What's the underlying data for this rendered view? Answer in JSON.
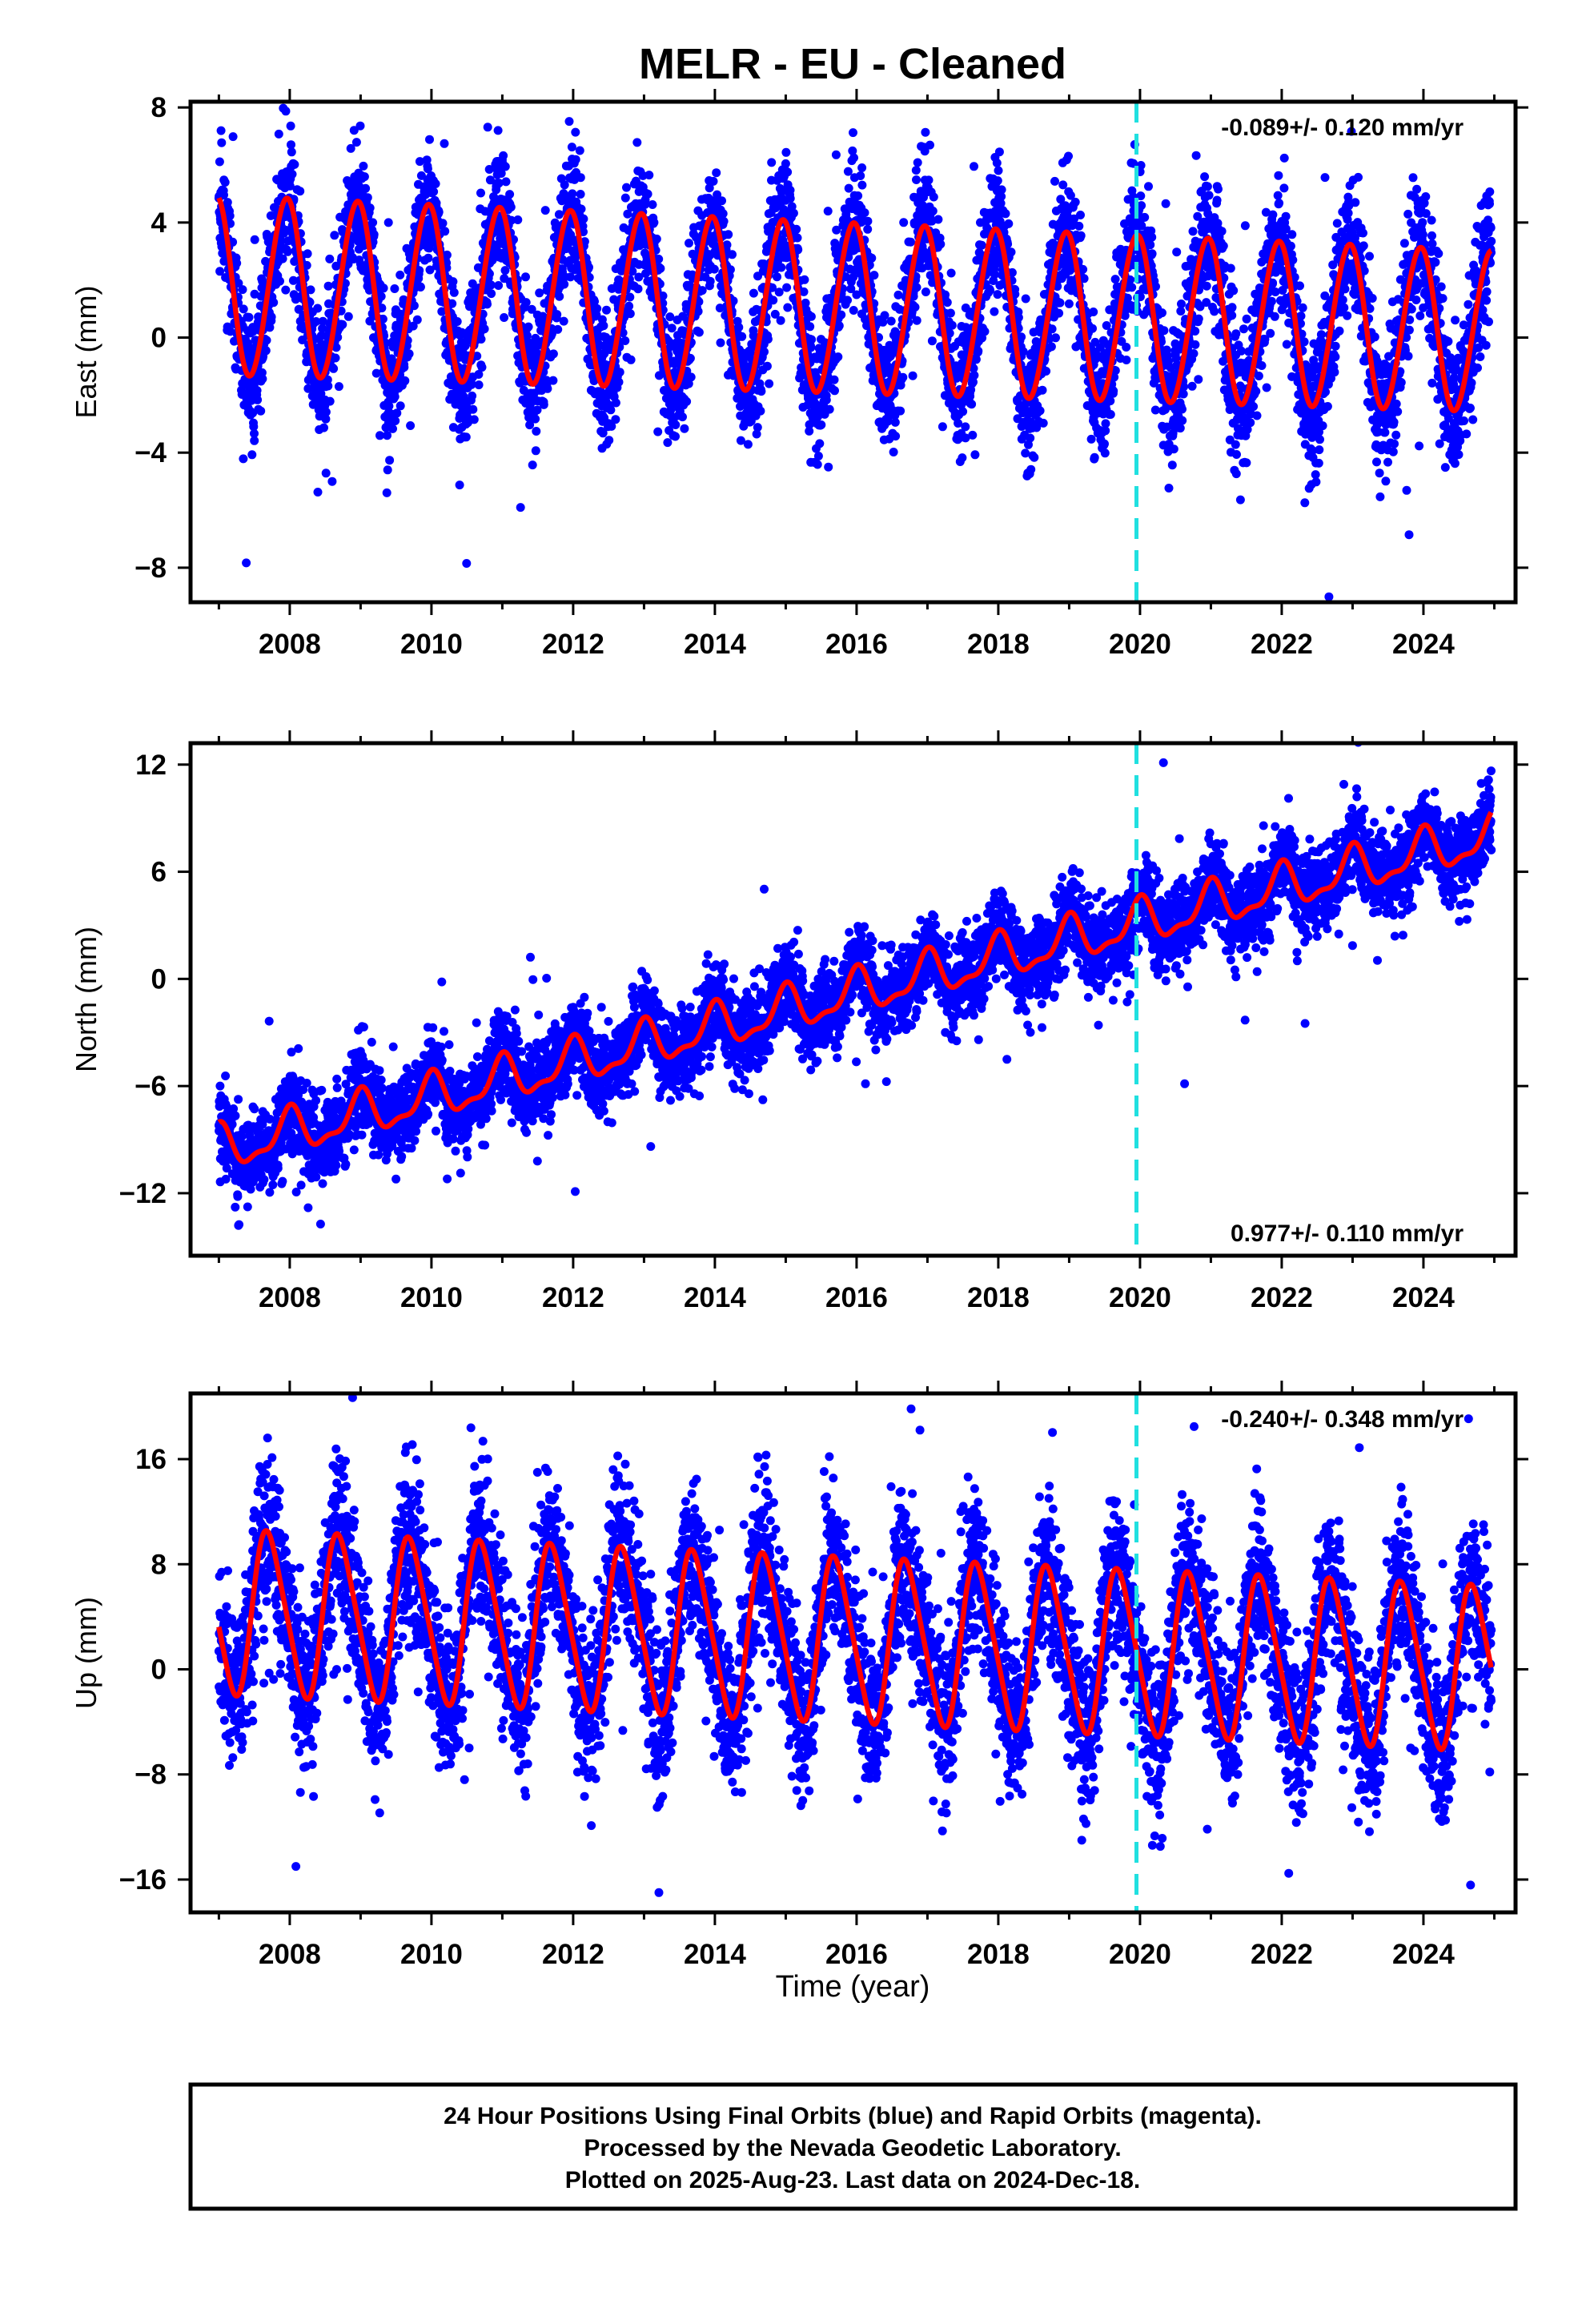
{
  "title": "MELR  - EU - Cleaned",
  "xlabel": "Time (year)",
  "footer": [
    "24 Hour Positions Using Final Orbits (blue) and Rapid Orbits (magenta).",
    "Processed by the Nevada Geodetic Laboratory.",
    "Plotted on 2025-Aug-23. Last data on 2024-Dec-18."
  ],
  "colors": {
    "points": "#0000ff",
    "model": "#ff0000",
    "event_line": "#20e0e0",
    "frame": "#000000"
  },
  "chart_data": [
    {
      "type": "scatter",
      "name": "east",
      "ylabel": "East (mm)",
      "rate_text": "-0.089+/- 0.120 mm/yr",
      "rate_position": "top-right",
      "xlim": [
        2006.6,
        2025.3
      ],
      "ylim": [
        -9.2,
        8.2
      ],
      "xticks": [
        2008,
        2010,
        2012,
        2014,
        2016,
        2018,
        2020,
        2022,
        2024
      ],
      "yticks": [
        -8,
        -4,
        0,
        4,
        8
      ],
      "data_range": [
        2007.0,
        2024.96
      ],
      "event_line_x": 2019.95,
      "model": {
        "offset": 1.0,
        "trend": -0.089,
        "ref_year": 2016.0,
        "annual_amp": 2.95,
        "annual_amp_change_per_yr": -0.018,
        "annual_phase": 1.9,
        "semiannual_amp": 0.15,
        "semiannual_phase": 0.8
      },
      "noise": {
        "sigma": 1.1,
        "outlier_sigma": 3.2,
        "outlier_rate": 0.02
      }
    },
    {
      "type": "scatter",
      "name": "north",
      "ylabel": "North (mm)",
      "rate_text": "0.977+/- 0.110 mm/yr",
      "rate_position": "bottom-right",
      "xlim": [
        2006.6,
        2025.3
      ],
      "ylim": [
        -15.5,
        13.2
      ],
      "xticks": [
        2008,
        2010,
        2012,
        2014,
        2016,
        2018,
        2020,
        2022,
        2024
      ],
      "yticks": [
        -12,
        -6,
        0,
        6,
        12
      ],
      "data_range": [
        2007.0,
        2024.96
      ],
      "event_line_x": 2019.95,
      "model": {
        "offset": -0.8,
        "trend": 0.977,
        "ref_year": 2016.0,
        "annual_amp": 1.15,
        "annual_amp_change_per_yr": 0.0,
        "annual_phase": 1.6,
        "semiannual_amp": 0.45,
        "semiannual_phase": 1.2
      },
      "noise": {
        "sigma": 1.15,
        "outlier_sigma": 3.5,
        "outlier_rate": 0.02
      }
    },
    {
      "type": "scatter",
      "name": "up",
      "ylabel": "Up (mm)",
      "rate_text": "-0.240+/- 0.348 mm/yr",
      "rate_position": "top-right",
      "xlim": [
        2006.6,
        2025.3
      ],
      "ylim": [
        -18.5,
        21.0
      ],
      "xticks": [
        2008,
        2010,
        2012,
        2014,
        2016,
        2018,
        2020,
        2022,
        2024
      ],
      "yticks": [
        -16,
        -8,
        0,
        8,
        16
      ],
      "data_range": [
        2007.0,
        2024.96
      ],
      "event_line_x": 2019.95,
      "model": {
        "offset": 2.2,
        "trend": -0.24,
        "ref_year": 2016.0,
        "annual_amp": 6.1,
        "annual_amp_change_per_yr": 0.0,
        "annual_phase": 3.4,
        "semiannual_amp": 0.9,
        "semiannual_phase": 0.5
      },
      "noise": {
        "sigma": 3.0,
        "outlier_sigma": 7.5,
        "outlier_rate": 0.02
      }
    }
  ]
}
